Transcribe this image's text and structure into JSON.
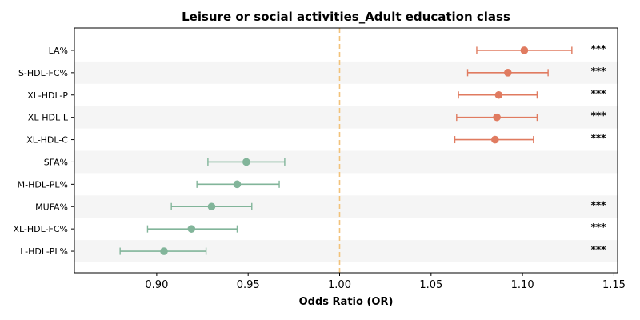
{
  "chart_data": {
    "type": "scatter",
    "title": "Leisure or social activities_Adult education class",
    "xlabel": "Odds Ratio (OR)",
    "ylabel": "",
    "xlim": [
      0.855,
      1.152
    ],
    "xticks": [
      "0.90",
      "0.95",
      "1.00",
      "1.05",
      "1.10",
      "1.15"
    ],
    "reference_line": 1.0,
    "grid": false,
    "significance_marker": "***",
    "colors": {
      "positive": "#e07b60",
      "negative": "#82b59a",
      "reference": "#f2c27a",
      "band": "#f5f5f5"
    },
    "rows": [
      {
        "label": "LA%",
        "or": 1.101,
        "ci_low": 1.075,
        "ci_high": 1.127,
        "sig": "***"
      },
      {
        "label": "S-HDL-FC%",
        "or": 1.092,
        "ci_low": 1.07,
        "ci_high": 1.114,
        "sig": "***"
      },
      {
        "label": "XL-HDL-P",
        "or": 1.087,
        "ci_low": 1.065,
        "ci_high": 1.108,
        "sig": "***"
      },
      {
        "label": "XL-HDL-L",
        "or": 1.086,
        "ci_low": 1.064,
        "ci_high": 1.108,
        "sig": "***"
      },
      {
        "label": "XL-HDL-C",
        "or": 1.085,
        "ci_low": 1.063,
        "ci_high": 1.106,
        "sig": "***"
      },
      {
        "label": "SFA%",
        "or": 0.949,
        "ci_low": 0.928,
        "ci_high": 0.97,
        "sig": ""
      },
      {
        "label": "M-HDL-PL%",
        "or": 0.944,
        "ci_low": 0.922,
        "ci_high": 0.967,
        "sig": ""
      },
      {
        "label": "MUFA%",
        "or": 0.93,
        "ci_low": 0.908,
        "ci_high": 0.952,
        "sig": "***"
      },
      {
        "label": "XL-HDL-FC%",
        "or": 0.919,
        "ci_low": 0.895,
        "ci_high": 0.944,
        "sig": "***"
      },
      {
        "label": "L-HDL-PL%",
        "or": 0.904,
        "ci_low": 0.88,
        "ci_high": 0.927,
        "sig": "***"
      }
    ]
  }
}
